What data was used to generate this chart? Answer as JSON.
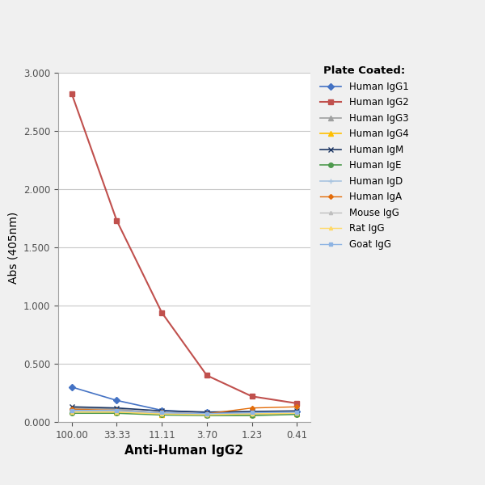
{
  "x_labels": [
    "100.00",
    "33.33",
    "11.11",
    "3.70",
    "1.23",
    "0.41"
  ],
  "x_positions": [
    0,
    1,
    2,
    3,
    4,
    5
  ],
  "series": [
    {
      "label": "Human IgG1",
      "color": "#4472C4",
      "marker": "D",
      "markersize": 4,
      "linewidth": 1.2,
      "values": [
        0.3,
        0.185,
        0.1,
        0.08,
        0.085,
        0.09
      ]
    },
    {
      "label": "Human IgG2",
      "color": "#C0504D",
      "marker": "s",
      "markersize": 4,
      "linewidth": 1.5,
      "values": [
        2.82,
        1.73,
        0.94,
        0.4,
        0.22,
        0.16
      ]
    },
    {
      "label": "Human IgG3",
      "color": "#9FA0A0",
      "marker": "^",
      "markersize": 4,
      "linewidth": 1.2,
      "values": [
        0.12,
        0.11,
        0.075,
        0.065,
        0.075,
        0.08
      ]
    },
    {
      "label": "Human IgG4",
      "color": "#FFBF00",
      "marker": "^",
      "markersize": 4,
      "linewidth": 1.2,
      "values": [
        0.09,
        0.085,
        0.065,
        0.06,
        0.065,
        0.07
      ]
    },
    {
      "label": "Human IgM",
      "color": "#1F3864",
      "marker": "x",
      "markersize": 5,
      "linewidth": 1.2,
      "values": [
        0.13,
        0.12,
        0.095,
        0.085,
        0.09,
        0.095
      ]
    },
    {
      "label": "Human IgE",
      "color": "#4E9A4E",
      "marker": "o",
      "markersize": 4,
      "linewidth": 1.2,
      "values": [
        0.075,
        0.075,
        0.06,
        0.055,
        0.055,
        0.065
      ]
    },
    {
      "label": "Human IgD",
      "color": "#A8C4E0",
      "marker": "+",
      "markersize": 5,
      "linewidth": 1.2,
      "values": [
        0.095,
        0.09,
        0.072,
        0.065,
        0.07,
        0.075
      ]
    },
    {
      "label": "Human IgA",
      "color": "#E36C09",
      "marker": "D",
      "markersize": 3,
      "linewidth": 1.0,
      "values": [
        0.11,
        0.1,
        0.08,
        0.07,
        0.12,
        0.13
      ]
    },
    {
      "label": "Mouse IgG",
      "color": "#BFBFBF",
      "marker": "^",
      "markersize": 3,
      "linewidth": 1.0,
      "values": [
        0.1,
        0.095,
        0.075,
        0.068,
        0.075,
        0.08
      ]
    },
    {
      "label": "Rat IgG",
      "color": "#FFD966",
      "marker": "^",
      "markersize": 3,
      "linewidth": 1.0,
      "values": [
        0.085,
        0.085,
        0.068,
        0.062,
        0.07,
        0.075
      ]
    },
    {
      "label": "Goat IgG",
      "color": "#8EB4E3",
      "marker": "s",
      "markersize": 3,
      "linewidth": 1.0,
      "values": [
        0.1,
        0.1,
        0.08,
        0.072,
        0.08,
        0.085
      ]
    }
  ],
  "ylabel": "Abs (405nm)",
  "xlabel": "Anti-Human IgG2",
  "ylim": [
    0.0,
    3.0
  ],
  "yticks": [
    0.0,
    0.5,
    1.0,
    1.5,
    2.0,
    2.5,
    3.0
  ],
  "legend_title": "Plate Coated:",
  "background_color": "#FFFFFF",
  "plot_bg_color": "#FFFFFF",
  "grid_color": "#C8C8C8",
  "outer_bg": "#F0F0F0"
}
